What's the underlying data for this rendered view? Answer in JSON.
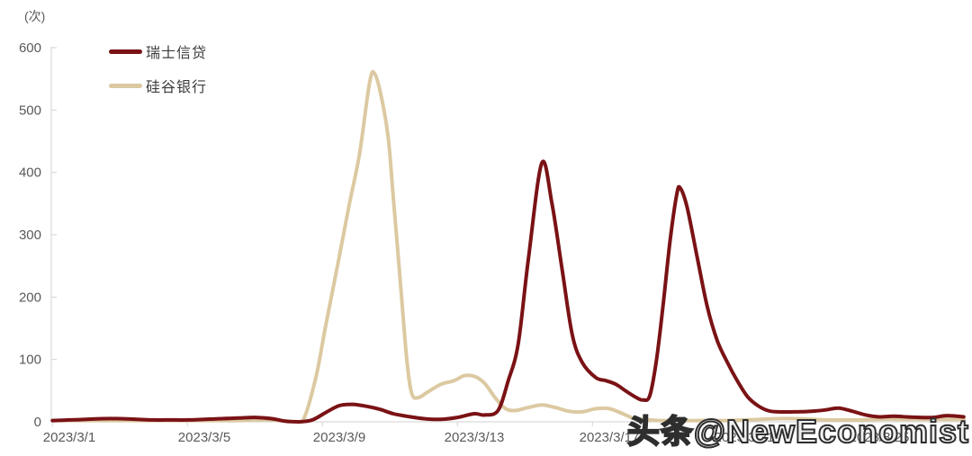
{
  "unit_label": "(次)",
  "watermark": {
    "text": "头条@NewEconomist"
  },
  "chart_data": {
    "type": "line",
    "title": "",
    "unit": "(次)",
    "xlabel": "",
    "ylabel": "(次)",
    "grid": false,
    "legend_position": "top-left",
    "x_axis": {
      "tick_labels": [
        "2023/3/1",
        "2023/3/5",
        "2023/3/9",
        "2023/3/13",
        "2023/3/17",
        "2023/3/21",
        "2023/3/25"
      ],
      "tick_days": [
        1,
        5,
        9,
        13,
        17,
        21,
        25
      ],
      "range_days": [
        0.5,
        27.5
      ]
    },
    "y_axis": {
      "ticks": [
        0,
        100,
        200,
        300,
        400,
        500,
        600
      ],
      "range": [
        0,
        600
      ]
    },
    "colors": {
      "axis_line": "#d2d2d2",
      "tick_text": "#595959",
      "legend_text": "#3d3d3d",
      "watermark_fill": "#f0f0f0",
      "watermark_stroke": "#2e2e2e"
    },
    "series": [
      {
        "name": "瑞士信贷",
        "color": "#7a1215",
        "peak": {
          "date": "2023/3/15",
          "value": 415
        },
        "points": [
          [
            0.5,
            2
          ],
          [
            1,
            3
          ],
          [
            1.5,
            4
          ],
          [
            2,
            5
          ],
          [
            2.5,
            5
          ],
          [
            3,
            4
          ],
          [
            3.5,
            3
          ],
          [
            4,
            3
          ],
          [
            4.5,
            3
          ],
          [
            5,
            4
          ],
          [
            5.5,
            5
          ],
          [
            6,
            6
          ],
          [
            6.5,
            7
          ],
          [
            7,
            5
          ],
          [
            7.4,
            1
          ],
          [
            7.8,
            0
          ],
          [
            8.2,
            3
          ],
          [
            8.6,
            15
          ],
          [
            9,
            26
          ],
          [
            9.4,
            28
          ],
          [
            9.8,
            25
          ],
          [
            10.2,
            20
          ],
          [
            10.6,
            13
          ],
          [
            11,
            9
          ],
          [
            11.5,
            5
          ],
          [
            12,
            4
          ],
          [
            12.5,
            7
          ],
          [
            13,
            13
          ],
          [
            13.3,
            11
          ],
          [
            13.7,
            18
          ],
          [
            14,
            65
          ],
          [
            14.3,
            125
          ],
          [
            14.6,
            260
          ],
          [
            15,
            415
          ],
          [
            15.3,
            350
          ],
          [
            15.6,
            245
          ],
          [
            15.9,
            140
          ],
          [
            16.2,
            95
          ],
          [
            16.6,
            71
          ],
          [
            16.9,
            66
          ],
          [
            17.2,
            60
          ],
          [
            17.5,
            49
          ],
          [
            17.8,
            39
          ],
          [
            18,
            35
          ],
          [
            18.2,
            42
          ],
          [
            18.4,
            100
          ],
          [
            18.6,
            190
          ],
          [
            18.8,
            290
          ],
          [
            19,
            365
          ],
          [
            19.1,
            375
          ],
          [
            19.3,
            345
          ],
          [
            19.6,
            265
          ],
          [
            19.9,
            185
          ],
          [
            20.2,
            130
          ],
          [
            20.5,
            95
          ],
          [
            20.8,
            65
          ],
          [
            21.1,
            40
          ],
          [
            21.4,
            26
          ],
          [
            21.7,
            18
          ],
          [
            22,
            16
          ],
          [
            22.5,
            16
          ],
          [
            23,
            17
          ],
          [
            23.4,
            19
          ],
          [
            23.8,
            22
          ],
          [
            24.2,
            17
          ],
          [
            24.6,
            11
          ],
          [
            25,
            8
          ],
          [
            25.4,
            9
          ],
          [
            25.8,
            8
          ],
          [
            26.2,
            7
          ],
          [
            26.6,
            7
          ],
          [
            27,
            10
          ],
          [
            27.5,
            8
          ]
        ]
      },
      {
        "name": "硅谷银行",
        "color": "#dcc9a1",
        "peak": {
          "date": "2023/3/10",
          "value": 558
        },
        "points": [
          [
            0.5,
            2
          ],
          [
            1,
            2
          ],
          [
            1.5,
            2
          ],
          [
            2,
            2
          ],
          [
            2.5,
            2
          ],
          [
            3,
            2
          ],
          [
            3.5,
            2
          ],
          [
            4,
            2
          ],
          [
            4.5,
            2
          ],
          [
            5,
            2
          ],
          [
            5.5,
            2
          ],
          [
            6,
            2
          ],
          [
            6.5,
            3
          ],
          [
            7,
            3
          ],
          [
            7.5,
            1
          ],
          [
            7.9,
            0
          ],
          [
            8.3,
            70
          ],
          [
            8.6,
            155
          ],
          [
            9,
            265
          ],
          [
            9.3,
            350
          ],
          [
            9.6,
            430
          ],
          [
            9.9,
            545
          ],
          [
            10.05,
            558
          ],
          [
            10.25,
            520
          ],
          [
            10.45,
            455
          ],
          [
            10.6,
            360
          ],
          [
            10.8,
            230
          ],
          [
            11,
            100
          ],
          [
            11.15,
            45
          ],
          [
            11.35,
            39
          ],
          [
            11.6,
            47
          ],
          [
            12,
            60
          ],
          [
            12.4,
            66
          ],
          [
            12.7,
            74
          ],
          [
            13,
            73
          ],
          [
            13.3,
            62
          ],
          [
            13.6,
            40
          ],
          [
            13.9,
            22
          ],
          [
            14.2,
            18
          ],
          [
            14.6,
            23
          ],
          [
            15,
            27
          ],
          [
            15.4,
            23
          ],
          [
            15.8,
            17
          ],
          [
            16.2,
            16
          ],
          [
            16.6,
            21
          ],
          [
            17,
            21
          ],
          [
            17.4,
            13
          ],
          [
            17.7,
            6
          ],
          [
            18,
            4
          ],
          [
            18.5,
            2
          ],
          [
            19,
            2
          ],
          [
            19.5,
            2
          ],
          [
            20,
            2
          ],
          [
            20.5,
            2
          ],
          [
            21,
            3
          ],
          [
            21.5,
            4
          ],
          [
            22,
            5
          ],
          [
            22.5,
            5
          ],
          [
            23,
            4
          ],
          [
            23.5,
            3
          ],
          [
            24,
            3
          ],
          [
            24.5,
            3
          ],
          [
            25,
            4
          ],
          [
            25.5,
            4
          ],
          [
            26,
            4
          ],
          [
            26.5,
            4
          ],
          [
            27,
            4
          ],
          [
            27.5,
            4
          ]
        ]
      }
    ]
  }
}
